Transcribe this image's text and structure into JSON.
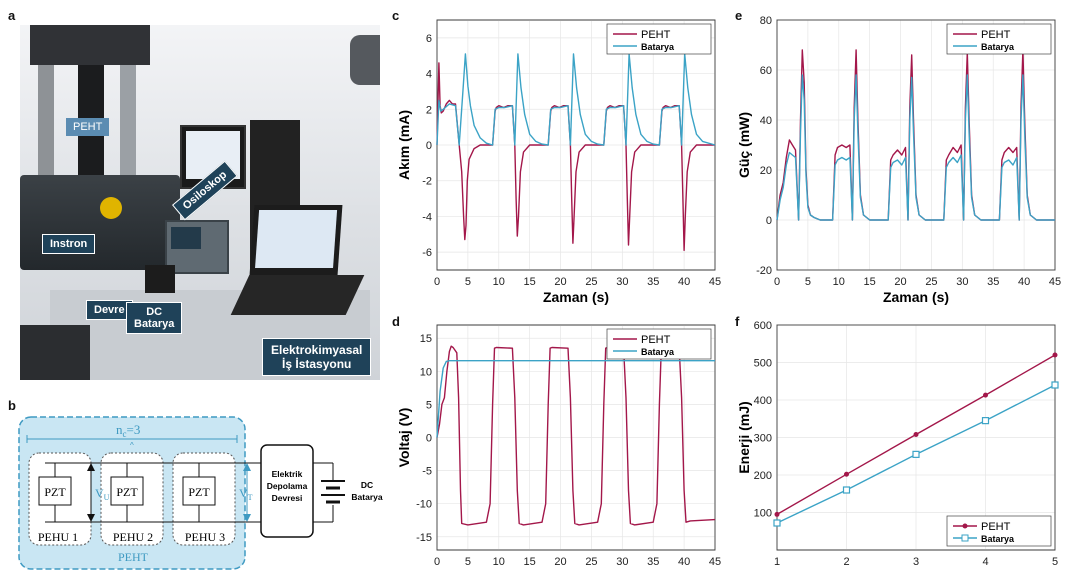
{
  "panels": {
    "a": "a",
    "b": "b",
    "c": "c",
    "d": "d",
    "e": "e",
    "f": "f"
  },
  "photo_labels": {
    "peht": "PEHT",
    "instron": "Instron",
    "osiloskop": "Osiloskop",
    "devre": "Devre",
    "dc_batarya": [
      "DC",
      "Batarya"
    ],
    "elektrokimyasal": [
      "Elektrokimyasal",
      "İş İstasyonu"
    ]
  },
  "diagram": {
    "nc": "n",
    "nc_sub": "c",
    "nc_val": "=3",
    "pzt": [
      "PZT",
      "PZT",
      "PZT"
    ],
    "pehu": [
      "PEHU  1",
      "PEHU  2",
      "PEHU  3"
    ],
    "vu": "V",
    "vu_sub": "U",
    "vt": "V",
    "vt_sub": "T",
    "peht": "PEHT",
    "storage": [
      "Elektrik",
      "Depolama",
      "Devresi"
    ],
    "dc": [
      "DC",
      "Batarya"
    ]
  },
  "colors": {
    "peht": "#a3174a",
    "batarya": "#3ba3c6",
    "callout": "#1f4259",
    "diagram_bg": "#c9e6f3",
    "diagram_line": "#3f9ac2"
  },
  "chart_data": [
    {
      "id": "c",
      "type": "line",
      "xlabel": "Zaman (s)",
      "ylabel": "Akım (mA)",
      "xlim": [
        0,
        45
      ],
      "ylim": [
        -7,
        7
      ],
      "xticks": [
        0,
        5,
        10,
        15,
        20,
        25,
        30,
        35,
        40,
        45
      ],
      "yticks": [
        -6,
        -4,
        -2,
        0,
        2,
        4,
        6
      ],
      "grid": true,
      "legend_position": "top-right",
      "series": [
        {
          "name": "PEHT",
          "x": [
            0,
            0.3,
            0.5,
            0.7,
            1.0,
            1.5,
            2.0,
            2.5,
            3.0,
            3.6,
            4.0,
            4.3,
            4.5,
            4.7,
            4.9,
            5.2,
            6,
            7,
            9,
            9.4,
            9.6,
            10,
            10.8,
            11.5,
            12.2,
            12.6,
            12.8,
            13.0,
            13.2,
            13.5,
            14,
            15,
            18,
            18.4,
            18.6,
            19,
            19.8,
            20.5,
            21.2,
            21.6,
            21.8,
            22.0,
            22.2,
            22.5,
            23,
            24,
            27,
            27.4,
            27.6,
            28,
            28.8,
            29.5,
            30.2,
            30.6,
            30.8,
            31.0,
            31.2,
            31.5,
            32,
            33,
            36,
            36.4,
            36.6,
            37,
            37.8,
            38.5,
            39.2,
            39.6,
            39.8,
            40.0,
            40.2,
            40.5,
            41,
            42,
            45
          ],
          "y": [
            0,
            4.6,
            2.2,
            1.8,
            1.9,
            2.3,
            2.5,
            2.3,
            2.3,
            0,
            -1.5,
            -4.0,
            -5.3,
            -4.5,
            -2.0,
            -0.8,
            -0.2,
            0,
            0,
            1.9,
            2.1,
            2.2,
            2.1,
            2.2,
            2.2,
            0,
            -3.0,
            -5.1,
            -4.0,
            -1.5,
            -0.4,
            0,
            0,
            1.9,
            2.1,
            2.2,
            2.1,
            2.2,
            2.2,
            0,
            -3.0,
            -5.5,
            -4.0,
            -1.5,
            -0.4,
            0,
            0,
            1.9,
            2.1,
            2.2,
            2.1,
            2.2,
            2.2,
            0,
            -3.0,
            -5.6,
            -4.0,
            -1.5,
            -0.4,
            0,
            0,
            1.9,
            2.1,
            2.2,
            2.1,
            2.2,
            2.2,
            0,
            -3.0,
            -5.9,
            -4.0,
            -1.5,
            -0.4,
            0,
            0
          ]
        },
        {
          "name": "Batarya",
          "x": [
            0,
            0.3,
            0.6,
            1,
            2,
            3,
            3.6,
            4.2,
            4.6,
            5.0,
            5.4,
            6,
            7,
            8,
            9,
            9.4,
            10,
            11,
            12.2,
            12.6,
            13.1,
            13.6,
            14.2,
            15,
            16,
            17,
            18,
            18.4,
            19,
            20,
            21.2,
            21.6,
            22.1,
            22.6,
            23.2,
            24,
            25,
            26,
            27,
            27.4,
            28,
            29,
            30.2,
            30.6,
            31.1,
            31.6,
            32.2,
            33,
            34,
            35,
            36,
            36.4,
            37,
            38,
            39.2,
            39.6,
            40.1,
            40.6,
            41.2,
            42,
            43,
            45
          ],
          "y": [
            0,
            2.5,
            1.9,
            2.0,
            2.3,
            2.2,
            0,
            3.0,
            5.1,
            3.3,
            2.2,
            1.1,
            0.4,
            0.1,
            0,
            2.0,
            2.1,
            2.1,
            2.2,
            0,
            5.1,
            3.2,
            1.7,
            0.6,
            0.2,
            0.05,
            0,
            2.0,
            2.1,
            2.1,
            2.2,
            0,
            5.1,
            3.2,
            1.7,
            0.6,
            0.2,
            0.05,
            0,
            2.0,
            2.1,
            2.1,
            2.2,
            0,
            5.1,
            3.2,
            1.7,
            0.6,
            0.2,
            0.05,
            0,
            2.0,
            2.1,
            2.1,
            2.2,
            0,
            5.1,
            3.2,
            1.7,
            0.6,
            0.2,
            0
          ]
        }
      ]
    },
    {
      "id": "d",
      "type": "line",
      "xlabel": "",
      "ylabel": "Voltaj (V)",
      "xlim": [
        0,
        45
      ],
      "ylim": [
        -17,
        17
      ],
      "xticks": [
        0,
        5,
        10,
        15,
        20,
        25,
        30,
        35,
        40,
        45
      ],
      "yticks": [
        -15,
        -10,
        -5,
        0,
        5,
        10,
        15
      ],
      "grid": true,
      "legend_position": "top-right",
      "series": [
        {
          "name": "PEHT",
          "x": [
            0,
            0.4,
            0.8,
            1.2,
            1.6,
            2.0,
            2.3,
            2.6,
            3.2,
            3.5,
            3.8,
            4.0,
            5,
            8,
            8.6,
            9,
            9.3,
            9.6,
            12.2,
            12.6,
            13.0,
            13.3,
            14,
            17,
            17.6,
            18,
            18.3,
            18.6,
            21.2,
            21.6,
            22.0,
            22.3,
            23,
            26,
            26.6,
            27,
            27.3,
            27.6,
            30.2,
            30.6,
            31.0,
            31.3,
            32,
            35,
            35.6,
            36,
            36.3,
            36.6,
            39.2,
            39.6,
            40.0,
            40.3,
            41,
            45
          ],
          "y": [
            0,
            2,
            5,
            6,
            10,
            13,
            13.8,
            13.6,
            12.8,
            6,
            -8,
            -13,
            -13.2,
            -12.8,
            -10,
            5,
            13.5,
            13.6,
            13.5,
            6,
            -8,
            -13,
            -13.2,
            -12.8,
            -10,
            5,
            13.5,
            13.6,
            13.5,
            6,
            -8,
            -13,
            -13.2,
            -12.8,
            -10,
            5,
            13.5,
            13.6,
            13.5,
            6,
            -8,
            -13,
            -13.2,
            -12.8,
            -10,
            5,
            13.5,
            13.6,
            13.5,
            6,
            -8,
            -12.8,
            -12.6,
            -12.4
          ]
        },
        {
          "name": "Batarya",
          "x": [
            0,
            0.5,
            1,
            1.5,
            2,
            45
          ],
          "y": [
            0,
            7,
            10.5,
            11.5,
            11.6,
            11.6
          ]
        }
      ]
    },
    {
      "id": "e",
      "type": "line",
      "xlabel": "Zaman (s)",
      "ylabel": "Güç (mW)",
      "xlim": [
        0,
        45
      ],
      "ylim": [
        -20,
        80
      ],
      "xticks": [
        0,
        5,
        10,
        15,
        20,
        25,
        30,
        35,
        40,
        45
      ],
      "yticks": [
        -20,
        0,
        20,
        40,
        60,
        80
      ],
      "grid": true,
      "legend_position": "top-right",
      "series": [
        {
          "name": "PEHT",
          "x": [
            0,
            0.5,
            1.0,
            1.5,
            2.0,
            2.5,
            3.0,
            3.5,
            3.8,
            4.1,
            4.4,
            4.7,
            5.0,
            5.4,
            6,
            7,
            9,
            9.4,
            9.8,
            10.5,
            11.2,
            11.8,
            12.2,
            12.5,
            12.8,
            13.1,
            13.5,
            14,
            15,
            18,
            18.4,
            18.8,
            19.5,
            20.2,
            20.8,
            21.2,
            21.5,
            21.8,
            22.1,
            22.5,
            23,
            24,
            27,
            27.4,
            27.8,
            28.5,
            29.2,
            29.8,
            30.2,
            30.5,
            30.8,
            31.1,
            31.5,
            32,
            33,
            36,
            36.4,
            36.8,
            37.5,
            38.2,
            38.8,
            39.2,
            39.5,
            39.8,
            40.1,
            40.5,
            41,
            42,
            45
          ],
          "y": [
            0,
            10,
            15,
            25,
            32,
            30,
            28,
            0,
            40,
            68,
            55,
            20,
            6,
            2,
            1,
            0,
            0,
            26,
            29,
            30,
            29,
            30,
            0,
            45,
            68,
            40,
            10,
            2,
            0,
            0,
            24,
            26,
            28,
            26,
            29,
            0,
            45,
            66,
            40,
            10,
            2,
            0,
            0,
            24,
            26,
            29,
            27,
            30,
            0,
            45,
            67,
            40,
            10,
            2,
            0,
            0,
            24,
            27,
            29,
            27,
            29,
            0,
            45,
            68,
            40,
            10,
            2,
            0,
            0
          ]
        },
        {
          "name": "Batarya",
          "x": [
            0,
            0.5,
            1.0,
            1.5,
            2.0,
            2.5,
            3.0,
            3.5,
            3.8,
            4.1,
            4.4,
            4.7,
            5.0,
            5.4,
            6,
            7,
            9,
            9.4,
            9.8,
            10.5,
            11.2,
            11.8,
            12.2,
            12.5,
            12.8,
            13.1,
            13.5,
            14,
            15,
            18,
            18.4,
            18.8,
            19.5,
            20.2,
            20.8,
            21.2,
            21.5,
            21.8,
            22.1,
            22.5,
            23,
            24,
            27,
            27.4,
            27.8,
            28.5,
            29.2,
            29.8,
            30.2,
            30.5,
            30.8,
            31.1,
            31.5,
            32,
            33,
            36,
            36.4,
            36.8,
            37.5,
            38.2,
            38.8,
            39.2,
            39.5,
            39.8,
            40.1,
            40.5,
            41,
            42,
            45
          ],
          "y": [
            0,
            8,
            13,
            22,
            27,
            26,
            25,
            0,
            35,
            58,
            48,
            18,
            5,
            2,
            1,
            0,
            0,
            22,
            24,
            25,
            24,
            25,
            0,
            40,
            58,
            35,
            9,
            2,
            0,
            0,
            21,
            23,
            24,
            22,
            25,
            0,
            40,
            57,
            35,
            9,
            2,
            0,
            0,
            21,
            23,
            25,
            23,
            26,
            0,
            40,
            58,
            35,
            9,
            2,
            0,
            0,
            21,
            23,
            24,
            22,
            25,
            0,
            40,
            58,
            35,
            9,
            2,
            0,
            0
          ]
        }
      ]
    },
    {
      "id": "f",
      "type": "line",
      "xlabel": "",
      "ylabel": "Enerji (mJ)",
      "xlim": [
        1,
        5
      ],
      "ylim": [
        0,
        600
      ],
      "xticks": [
        1,
        2,
        3,
        4,
        5
      ],
      "yticks": [
        100,
        200,
        300,
        400,
        500,
        600
      ],
      "ytick_labels": [
        "100",
        "200",
        "300",
        "400",
        "500",
        "600"
      ],
      "grid": true,
      "legend_position": "bottom-right",
      "series": [
        {
          "name": "PEHT",
          "x": [
            1,
            2,
            3,
            4,
            5
          ],
          "y": [
            95,
            202,
            308,
            413,
            520
          ]
        },
        {
          "name": "Batarya",
          "x": [
            1,
            2,
            3,
            4,
            5
          ],
          "y": [
            72,
            160,
            255,
            345,
            440
          ]
        }
      ]
    }
  ]
}
